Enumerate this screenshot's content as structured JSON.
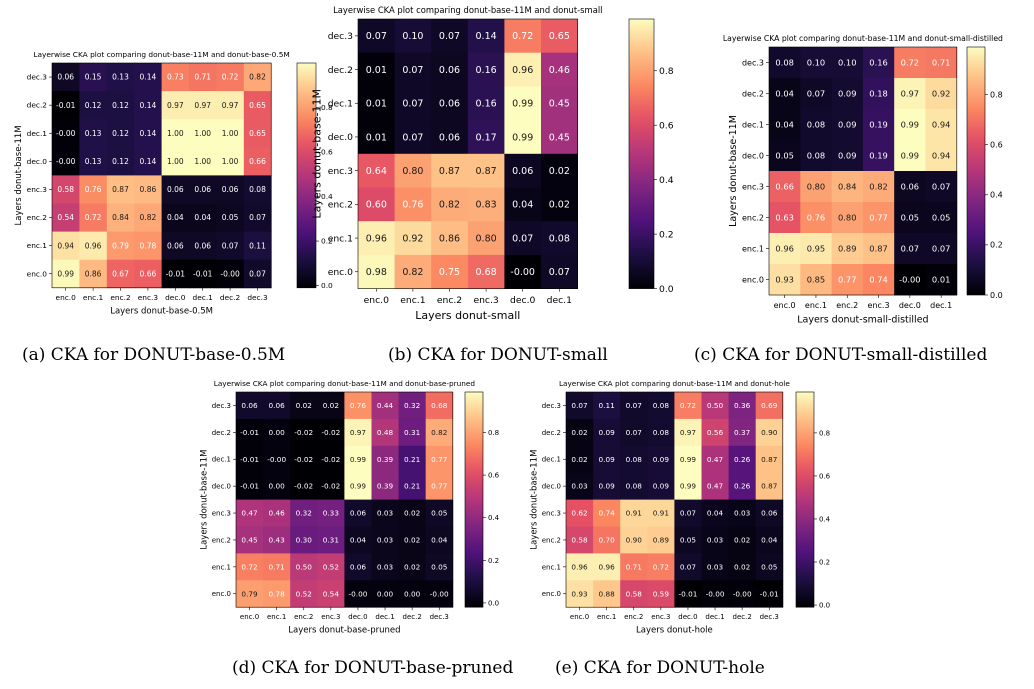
{
  "chart_data": [
    {
      "type": "heatmap",
      "title": "Layerwise CKA plot comparing donut-base-11M and donut-base-0.5M",
      "xlabel": "Layers donut-base-0.5M",
      "ylabel": "Layers donut-base-11M",
      "caption": "(a) CKA for DONUT-base-0.5M",
      "x_labels": [
        "enc.0",
        "enc.1",
        "enc.2",
        "enc.3",
        "dec.0",
        "dec.1",
        "dec.2",
        "dec.3"
      ],
      "y_labels": [
        "dec.3",
        "dec.2",
        "dec.1",
        "dec.0",
        "enc.3",
        "enc.2",
        "enc.1",
        "enc.0"
      ],
      "values": [
        [
          "0.06",
          "0.15",
          "0.13",
          "0.14",
          "0.73",
          "0.71",
          "0.72",
          "0.82"
        ],
        [
          "-0.01",
          "0.12",
          "0.12",
          "0.14",
          "0.97",
          "0.97",
          "0.97",
          "0.65"
        ],
        [
          "-0.00",
          "0.13",
          "0.12",
          "0.14",
          "1.00",
          "1.00",
          "1.00",
          "0.65"
        ],
        [
          "-0.00",
          "0.13",
          "0.12",
          "0.14",
          "1.00",
          "1.00",
          "1.00",
          "0.66"
        ],
        [
          "0.58",
          "0.76",
          "0.87",
          "0.86",
          "0.06",
          "0.06",
          "0.06",
          "0.08"
        ],
        [
          "0.54",
          "0.72",
          "0.84",
          "0.82",
          "0.04",
          "0.04",
          "0.05",
          "0.07"
        ],
        [
          "0.94",
          "0.96",
          "0.79",
          "0.78",
          "0.06",
          "0.06",
          "0.07",
          "0.11"
        ],
        [
          "0.99",
          "0.86",
          "0.67",
          "0.66",
          "-0.01",
          "-0.01",
          "-0.00",
          "0.07"
        ]
      ],
      "colorbar_ticks": [
        "0.0",
        "0.2",
        "0.4",
        "0.6",
        "0.8"
      ],
      "vmin": -0.01,
      "vmax": 1.0
    },
    {
      "type": "heatmap",
      "title": "Layerwise CKA plot comparing donut-base-11M and donut-small",
      "xlabel": "Layers donut-small",
      "ylabel": "Layers donut-base-11M",
      "caption": "(b) CKA for DONUT-small",
      "x_labels": [
        "enc.0",
        "enc.1",
        "enc.2",
        "enc.3",
        "dec.0",
        "dec.1"
      ],
      "y_labels": [
        "dec.3",
        "dec.2",
        "dec.1",
        "dec.0",
        "enc.3",
        "enc.2",
        "enc.1",
        "enc.0"
      ],
      "values": [
        [
          "0.07",
          "0.10",
          "0.07",
          "0.14",
          "0.72",
          "0.65"
        ],
        [
          "0.01",
          "0.07",
          "0.06",
          "0.16",
          "0.96",
          "0.46"
        ],
        [
          "0.01",
          "0.07",
          "0.06",
          "0.16",
          "0.99",
          "0.45"
        ],
        [
          "0.01",
          "0.07",
          "0.06",
          "0.17",
          "0.99",
          "0.45"
        ],
        [
          "0.64",
          "0.80",
          "0.87",
          "0.87",
          "0.06",
          "0.02"
        ],
        [
          "0.60",
          "0.76",
          "0.82",
          "0.83",
          "0.04",
          "0.02"
        ],
        [
          "0.96",
          "0.92",
          "0.86",
          "0.80",
          "0.07",
          "0.08"
        ],
        [
          "0.98",
          "0.82",
          "0.75",
          "0.68",
          "-0.00",
          "0.07"
        ]
      ],
      "colorbar_ticks": [
        "0.0",
        "0.2",
        "0.4",
        "0.6",
        "0.8"
      ],
      "vmin": 0.0,
      "vmax": 0.99
    },
    {
      "type": "heatmap",
      "title": "Layerwise CKA plot comparing donut-base-11M and donut-small-distilled",
      "xlabel": "Layers donut-small-distilled",
      "ylabel": "Layers donut-base-11M",
      "caption": "(c) CKA for DONUT-small-distilled",
      "x_labels": [
        "enc.0",
        "enc.1",
        "enc.2",
        "enc.3",
        "dec.0",
        "dec.1"
      ],
      "y_labels": [
        "dec.3",
        "dec.2",
        "dec.1",
        "dec.0",
        "enc.3",
        "enc.2",
        "enc.1",
        "enc.0"
      ],
      "values": [
        [
          "0.08",
          "0.10",
          "0.10",
          "0.16",
          "0.72",
          "0.71"
        ],
        [
          "0.04",
          "0.07",
          "0.09",
          "0.18",
          "0.97",
          "0.92"
        ],
        [
          "0.04",
          "0.08",
          "0.09",
          "0.19",
          "0.99",
          "0.94"
        ],
        [
          "0.05",
          "0.08",
          "0.09",
          "0.19",
          "0.99",
          "0.94"
        ],
        [
          "0.66",
          "0.80",
          "0.84",
          "0.82",
          "0.06",
          "0.07"
        ],
        [
          "0.63",
          "0.76",
          "0.80",
          "0.77",
          "0.05",
          "0.05"
        ],
        [
          "0.96",
          "0.95",
          "0.89",
          "0.87",
          "0.07",
          "0.07"
        ],
        [
          "0.93",
          "0.85",
          "0.77",
          "0.74",
          "-0.00",
          "0.01"
        ]
      ],
      "colorbar_ticks": [
        "0.0",
        "0.2",
        "0.4",
        "0.6",
        "0.8"
      ],
      "vmin": 0.0,
      "vmax": 0.99
    },
    {
      "type": "heatmap",
      "title": "Layerwise CKA plot comparing donut-base-11M and donut-base-pruned",
      "xlabel": "Layers donut-base-pruned",
      "ylabel": "Layers donut-base-11M",
      "caption": "(d) CKA for DONUT-base-pruned",
      "x_labels": [
        "enc.0",
        "enc.1",
        "enc.2",
        "enc.3",
        "dec.0",
        "dec.1",
        "dec.2",
        "dec.3"
      ],
      "y_labels": [
        "dec.3",
        "dec.2",
        "dec.1",
        "dec.0",
        "enc.3",
        "enc.2",
        "enc.1",
        "enc.0"
      ],
      "values": [
        [
          "0.06",
          "0.06",
          "0.02",
          "0.02",
          "0.76",
          "0.44",
          "0.32",
          "0.68"
        ],
        [
          "-0.01",
          "0.00",
          "-0.02",
          "-0.02",
          "0.97",
          "0.48",
          "0.31",
          "0.82"
        ],
        [
          "-0.01",
          "-0.00",
          "-0.02",
          "-0.02",
          "0.99",
          "0.39",
          "0.21",
          "0.77"
        ],
        [
          "-0.01",
          "0.00",
          "-0.02",
          "-0.02",
          "0.99",
          "0.39",
          "0.21",
          "0.77"
        ],
        [
          "0.47",
          "0.46",
          "0.32",
          "0.33",
          "0.06",
          "0.03",
          "0.02",
          "0.05"
        ],
        [
          "0.45",
          "0.43",
          "0.30",
          "0.31",
          "0.04",
          "0.03",
          "0.02",
          "0.04"
        ],
        [
          "0.72",
          "0.71",
          "0.50",
          "0.52",
          "0.06",
          "0.03",
          "0.02",
          "0.05"
        ],
        [
          "0.79",
          "0.78",
          "0.52",
          "0.54",
          "-0.00",
          "0.00",
          "0.00",
          "-0.00"
        ]
      ],
      "colorbar_ticks": [
        "0.0",
        "0.2",
        "0.4",
        "0.6",
        "0.8"
      ],
      "vmin": -0.02,
      "vmax": 0.99
    },
    {
      "type": "heatmap",
      "title": "Layerwise CKA plot comparing donut-base-11M and donut-hole",
      "xlabel": "Layers donut-hole",
      "ylabel": "Layers donut-base-11M",
      "caption": "(e) CKA for DONUT-hole",
      "x_labels": [
        "enc.0",
        "enc.1",
        "enc.2",
        "enc.3",
        "dec.0",
        "dec.1",
        "dec.2",
        "dec.3"
      ],
      "y_labels": [
        "dec.3",
        "dec.2",
        "dec.1",
        "dec.0",
        "enc.3",
        "enc.2",
        "enc.1",
        "enc.0"
      ],
      "values": [
        [
          "0.07",
          "0.11",
          "0.07",
          "0.08",
          "0.72",
          "0.50",
          "0.36",
          "0.69"
        ],
        [
          "0.02",
          "0.09",
          "0.07",
          "0.08",
          "0.97",
          "0.56",
          "0.37",
          "0.90"
        ],
        [
          "0.02",
          "0.09",
          "0.08",
          "0.09",
          "0.99",
          "0.47",
          "0.26",
          "0.87"
        ],
        [
          "0.03",
          "0.09",
          "0.08",
          "0.09",
          "0.99",
          "0.47",
          "0.26",
          "0.87"
        ],
        [
          "0.62",
          "0.74",
          "0.91",
          "0.91",
          "0.07",
          "0.04",
          "0.03",
          "0.06"
        ],
        [
          "0.58",
          "0.70",
          "0.90",
          "0.89",
          "0.05",
          "0.03",
          "0.02",
          "0.04"
        ],
        [
          "0.96",
          "0.96",
          "0.71",
          "0.72",
          "0.07",
          "0.03",
          "0.02",
          "0.05"
        ],
        [
          "0.93",
          "0.88",
          "0.58",
          "0.59",
          "-0.01",
          "-0.00",
          "-0.00",
          "-0.01"
        ]
      ],
      "colorbar_ticks": [
        "0.0",
        "0.2",
        "0.4",
        "0.6",
        "0.8"
      ],
      "vmin": -0.01,
      "vmax": 0.99
    }
  ]
}
